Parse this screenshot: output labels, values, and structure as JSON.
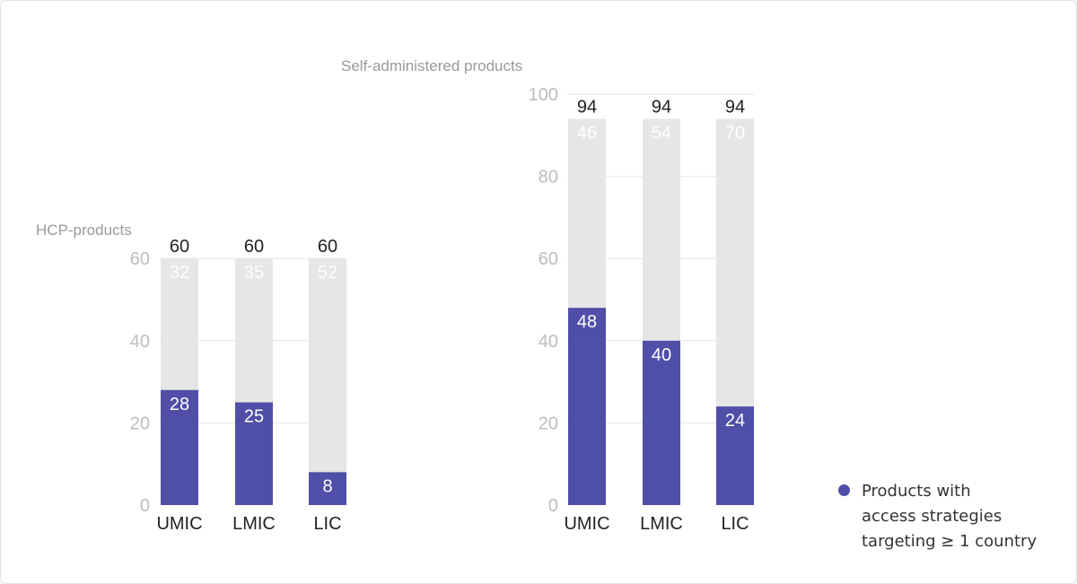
{
  "chart_data": [
    {
      "type": "bar",
      "title": "HCP-products",
      "categories": [
        "UMIC",
        "LMIC",
        "LIC"
      ],
      "ylim": [
        0,
        60
      ],
      "yticks": [
        0,
        20,
        40,
        60
      ],
      "totals": [
        60,
        60,
        60
      ],
      "series": [
        {
          "name": "Products with access strategies targeting ≥ 1 country",
          "values": [
            28,
            25,
            8
          ]
        },
        {
          "values": [
            32,
            35,
            52
          ]
        }
      ]
    },
    {
      "type": "bar",
      "title": "Self-administered products",
      "categories": [
        "UMIC",
        "LMIC",
        "LIC"
      ],
      "ylim": [
        0,
        100
      ],
      "yticks": [
        0,
        20,
        40,
        60,
        80,
        100
      ],
      "totals": [
        94,
        94,
        94
      ],
      "series": [
        {
          "name": "Products with access strategies targeting ≥ 1 country",
          "values": [
            48,
            40,
            24
          ]
        },
        {
          "values": [
            46,
            54,
            70
          ]
        }
      ]
    }
  ],
  "legend": {
    "label": "Products with\naccess strategies\ntargeting ≥ 1 country",
    "color": "#4f4fa8"
  },
  "colors": {
    "primary": "#4f4fa8",
    "remainder": "#e6e6e6",
    "axis_text": "#bdbdbd",
    "label_text": "#222222"
  }
}
